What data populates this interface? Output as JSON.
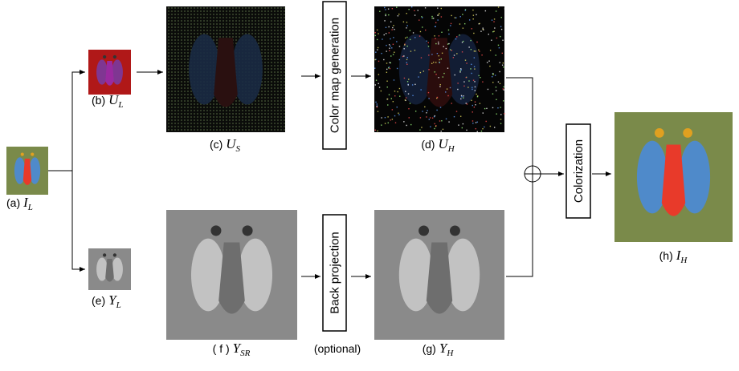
{
  "panels": [
    {
      "prefix": "(a)",
      "symbol": "I",
      "sub": "L"
    },
    {
      "prefix": "(b)",
      "symbol": "U",
      "sub": "L"
    },
    {
      "prefix": "(c)",
      "symbol": "U",
      "sub": "S"
    },
    {
      "prefix": "(d)",
      "symbol": "U",
      "sub": "H"
    },
    {
      "prefix": "(e)",
      "symbol": "Y",
      "sub": "L"
    },
    {
      "prefix": "( f )",
      "symbol": "Y",
      "sub": "SR"
    },
    {
      "prefix": "(g)",
      "symbol": "Y",
      "sub": "H"
    },
    {
      "prefix": "(h)",
      "symbol": "I",
      "sub": "H"
    }
  ],
  "boxes": [
    "Color map generation",
    "Back projection",
    "Colorization"
  ],
  "note": "(optional)"
}
